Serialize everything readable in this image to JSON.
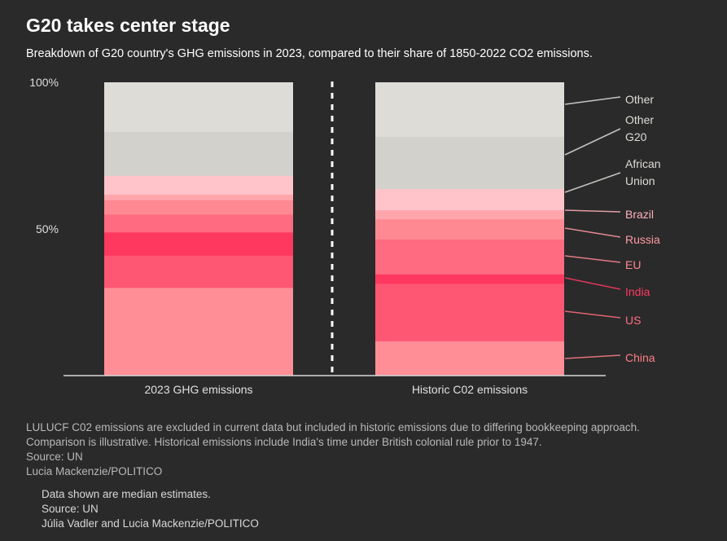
{
  "title": "G20 takes center stage",
  "subtitle": "Breakdown of G20 country's GHG emissions in 2023, compared to their share of 1850-2022 CO2 emissions.",
  "chart_data": {
    "type": "bar",
    "stacked": true,
    "yaxis": {
      "range": [
        0,
        100
      ],
      "ticks": [
        {
          "value": 100,
          "label": "100%"
        },
        {
          "value": 50,
          "label": "50%"
        }
      ]
    },
    "categories": [
      "2023 GHG emissions",
      "Historic C02 emissions"
    ],
    "series": [
      {
        "name": "China",
        "values": [
          30,
          11.8
        ],
        "color": "#ff8e96",
        "label_color": "#ff7e89"
      },
      {
        "name": "US",
        "values": [
          11,
          19.6
        ],
        "color": "#fe5774",
        "label_color": "#ff6f7e"
      },
      {
        "name": "India",
        "values": [
          7.9,
          3.2
        ],
        "color": "#ff3860",
        "label_color": "#ff3a62"
      },
      {
        "name": "EU",
        "values": [
          6.1,
          11.9
        ],
        "color": "#ff6b80",
        "label_color": "#ff8893"
      },
      {
        "name": "Russia",
        "values": [
          4.9,
          6.9
        ],
        "color": "#ff8993",
        "label_color": "#ff9aa2"
      },
      {
        "name": "Brazil",
        "values": [
          1.9,
          3.1
        ],
        "color": "#ffa6ad",
        "label_color": "#ffb2b8"
      },
      {
        "name": "African Union",
        "values": [
          6.4,
          7.2
        ],
        "color": "#ffc4c9",
        "label_color": "#dedcd7"
      },
      {
        "name": "Other G20",
        "values": [
          15,
          17.8
        ],
        "color": "#d3d1cc",
        "label_color": "#dedcd7"
      },
      {
        "name": "Other",
        "values": [
          16.8,
          18.5
        ],
        "color": "#dedcd7",
        "label_color": "#dedcd7"
      }
    ],
    "label_lines": {
      "Other": [
        "Other"
      ],
      "Other G20": [
        "Other",
        "G20"
      ],
      "African Union": [
        "African",
        "Union"
      ],
      "Brazil": [
        "Brazil"
      ],
      "Russia": [
        "Russia"
      ],
      "EU": [
        "EU"
      ],
      "India": [
        "India"
      ],
      "US": [
        "US"
      ],
      "China": [
        "China"
      ]
    }
  },
  "notes": {
    "line1": "LULUCF C02 emissions are excluded in current data but included in historic emissions due to differing bookkeeping approach.",
    "line2": "Comparison is illustrative. Historical emissions include India's time under British colonial rule prior to 1947.",
    "source": "Source: UN",
    "credit": "Lucia Mackenzie/POLITICO"
  },
  "notes2": {
    "line1": "Data shown are median estimates.",
    "source": "Source: UN",
    "credit": "Júlia Vadler and Lucia Mackenzie/POLITICO"
  }
}
